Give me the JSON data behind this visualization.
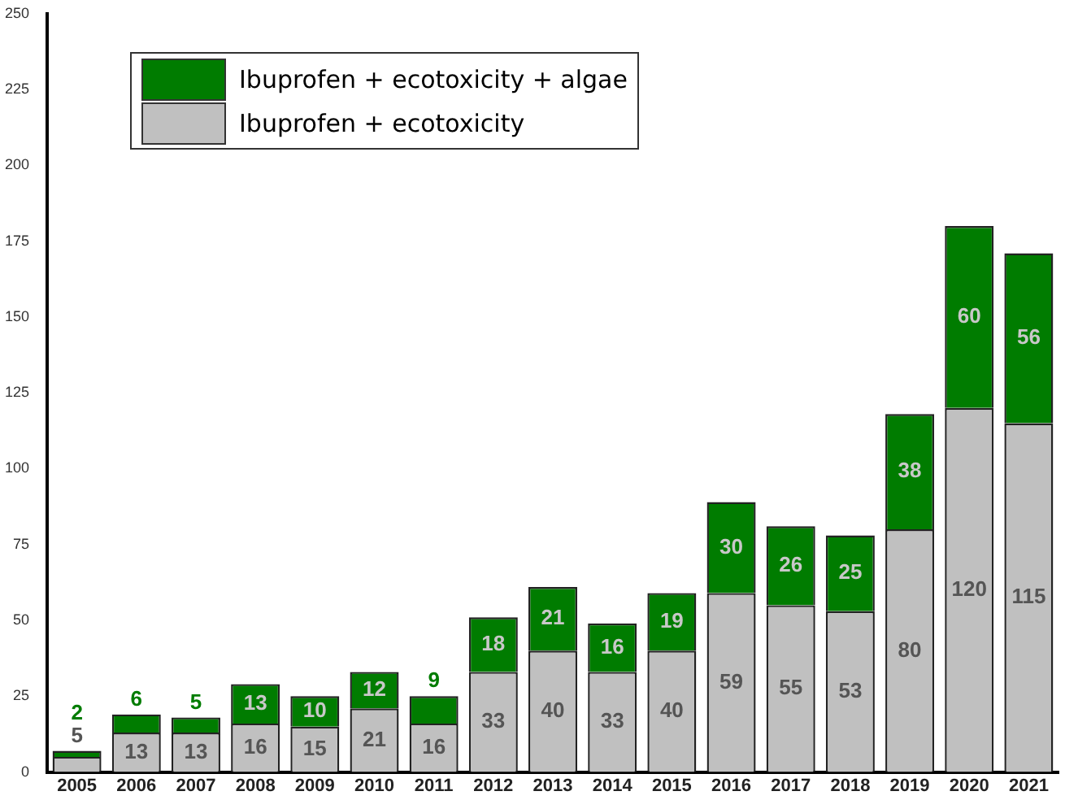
{
  "chart_data": {
    "type": "bar",
    "stacked": true,
    "categories": [
      "2005",
      "2006",
      "2007",
      "2008",
      "2009",
      "2010",
      "2011",
      "2012",
      "2013",
      "2014",
      "2015",
      "2016",
      "2017",
      "2018",
      "2019",
      "2020",
      "2021"
    ],
    "series": [
      {
        "name": "Ibuprofen + ecotoxicity",
        "color": "#c0c0c0",
        "values": [
          5,
          13,
          13,
          16,
          15,
          21,
          16,
          33,
          40,
          33,
          40,
          59,
          55,
          53,
          80,
          120,
          115
        ]
      },
      {
        "name": "Ibuprofen + ecotoxicity + algae",
        "color": "#007c00",
        "values": [
          2,
          6,
          5,
          13,
          10,
          12,
          9,
          18,
          21,
          16,
          19,
          30,
          26,
          25,
          38,
          60,
          56
        ]
      }
    ],
    "ylim": [
      0,
      250
    ],
    "yticks": [
      0,
      25,
      50,
      75,
      100,
      125,
      150,
      175,
      200,
      225,
      250
    ],
    "grid": false,
    "legend": "top left",
    "data_labels": true
  }
}
